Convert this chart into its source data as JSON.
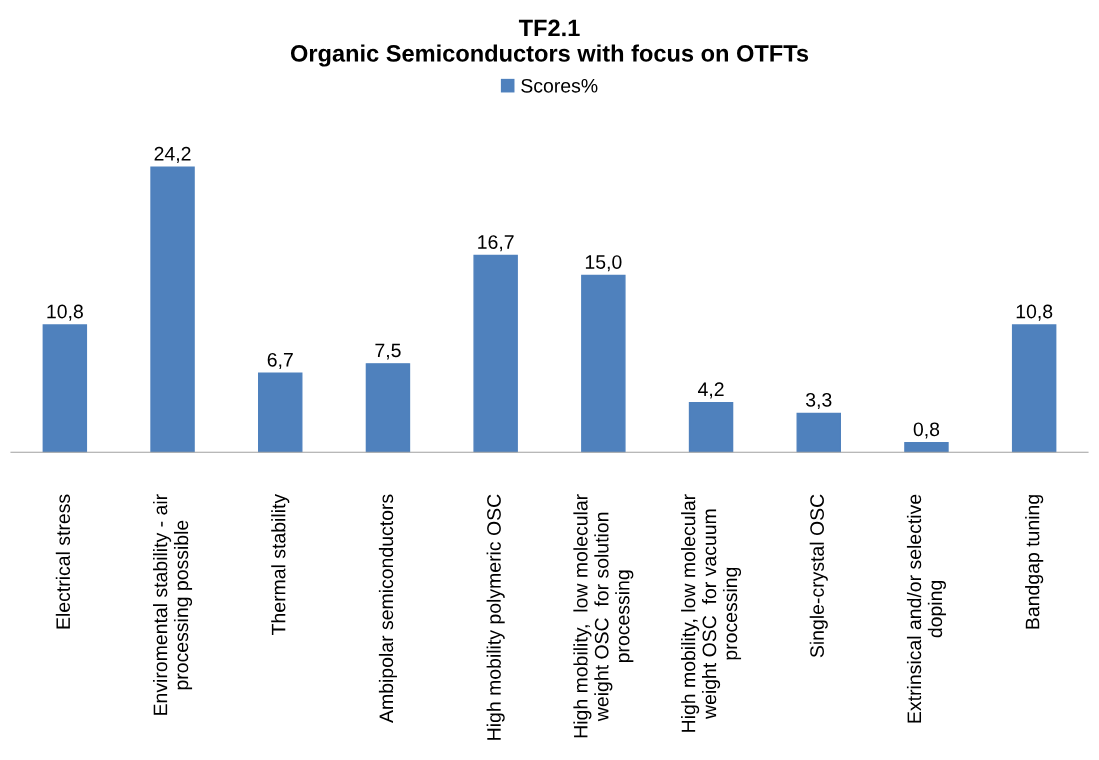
{
  "chart_data": {
    "type": "bar",
    "title": "TF2.1\nOrganic Semiconductors with focus on OTFTs",
    "categories": [
      "Electrical stress",
      "Enviromental stability - air\nprocessing possible",
      "Thermal stability",
      "Ambipolar semiconductors",
      "High mobility polymeric OSC",
      "High mobility,  low molecular\nweight OSC  for solution\nprocessing",
      "High mobility, low molecular\nweight OSC  for vacuum\nprocessing",
      "Single-crystal OSC",
      "Extrinsical and/or selective\ndoping",
      "Bandgap tuning"
    ],
    "series": [
      {
        "name": "Scores%",
        "color": "#4f81bd",
        "values": [
          10.8,
          24.2,
          6.7,
          7.5,
          16.7,
          15.0,
          4.2,
          3.3,
          0.8,
          10.8
        ],
        "value_labels": [
          "10,8",
          "24,2",
          "6,7",
          "7,5",
          "16,7",
          "15,0",
          "4,2",
          "3,3",
          "0,8",
          "10,8"
        ]
      }
    ],
    "legend": "top",
    "grid": false
  }
}
